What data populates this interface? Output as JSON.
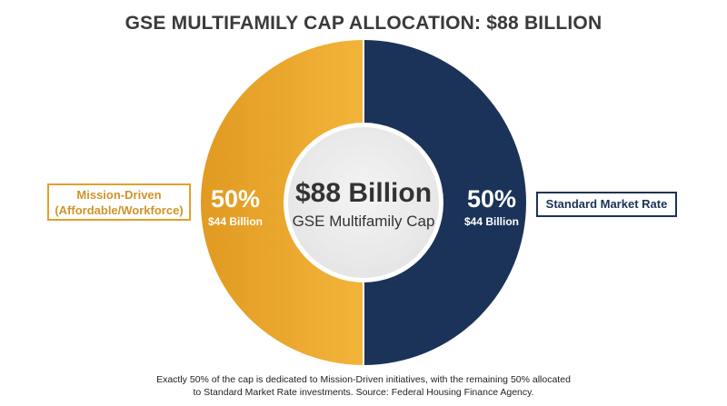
{
  "chart_data": {
    "type": "pie",
    "title": "GSE MULTIFAMILY CAP ALLOCATION: $88 BILLION",
    "center_value": "$88 Billion",
    "center_label": "GSE Multifamily Cap",
    "slices": [
      {
        "label_line1": "Mission-Driven",
        "label_line2": "(Affordable/Workforce)",
        "value": 50,
        "percent_label": "50%",
        "amount_label": "$44 Billion",
        "color": "#E8A230"
      },
      {
        "label": "Standard Market Rate",
        "value": 50,
        "percent_label": "50%",
        "amount_label": "$44 Billion",
        "color": "#1B3358"
      }
    ],
    "footnote_line1": "Exactly 50% of the cap is dedicated to Mission-Driven initiatives, with the remaining 50% allocated",
    "footnote_line2": "to Standard Market Rate investments. Source: Federal Housing Finance Agency."
  }
}
